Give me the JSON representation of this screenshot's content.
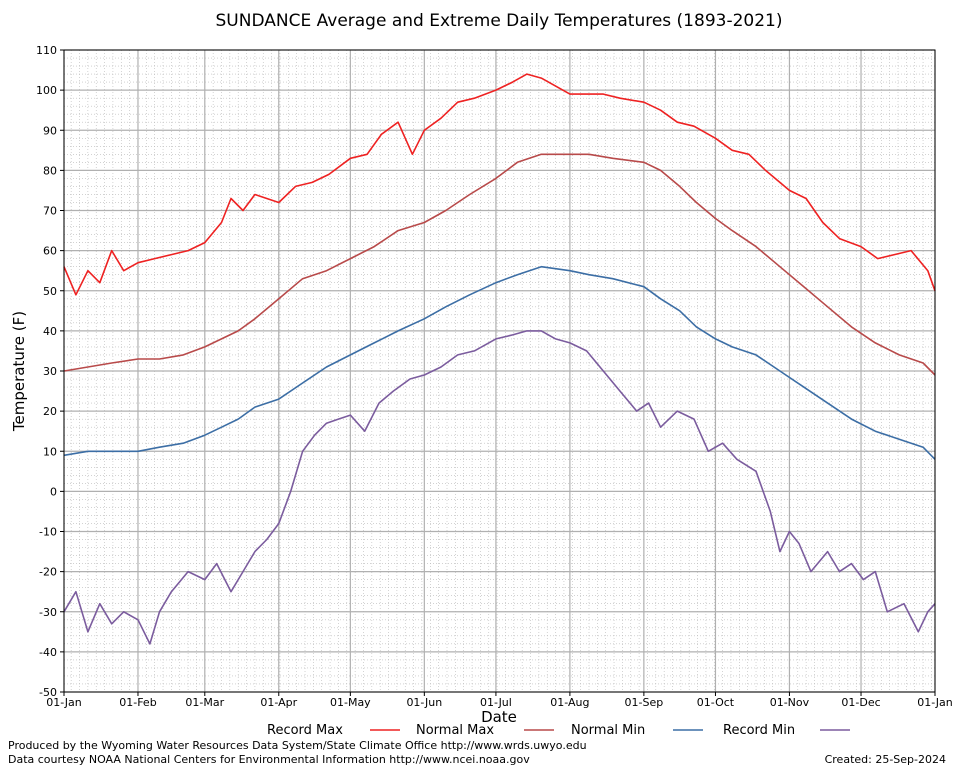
{
  "chart_data": {
    "type": "line",
    "title": "SUNDANCE Average and Extreme Daily Temperatures (1893-2021)",
    "xlabel": "Date",
    "ylabel": "Temperature (F)",
    "x_ticks": [
      "01-Jan",
      "01-Feb",
      "01-Mar",
      "01-Apr",
      "01-May",
      "01-Jun",
      "01-Jul",
      "01-Aug",
      "01-Sep",
      "01-Oct",
      "01-Nov",
      "01-Dec",
      "01-Jan"
    ],
    "x_tick_days": [
      0,
      31,
      59,
      90,
      120,
      151,
      181,
      212,
      243,
      273,
      304,
      334,
      365
    ],
    "x_range": [
      0,
      365
    ],
    "y_ticks": [
      -50,
      -40,
      -30,
      -20,
      -10,
      0,
      10,
      20,
      30,
      40,
      50,
      60,
      70,
      80,
      90,
      100,
      110
    ],
    "ylim": [
      -50,
      110
    ],
    "grid": true,
    "legend_position": "bottom",
    "series": [
      {
        "name": "Record Max",
        "color": "#ee2222",
        "x": [
          0,
          5,
          10,
          15,
          20,
          25,
          31,
          38,
          45,
          52,
          59,
          66,
          70,
          75,
          80,
          85,
          90,
          97,
          104,
          111,
          120,
          127,
          133,
          140,
          146,
          151,
          158,
          165,
          172,
          181,
          188,
          194,
          200,
          206,
          212,
          219,
          226,
          233,
          243,
          250,
          257,
          264,
          273,
          280,
          287,
          294,
          304,
          311,
          318,
          325,
          334,
          341,
          348,
          355,
          362,
          365
        ],
        "values": [
          56,
          49,
          55,
          52,
          60,
          55,
          57,
          58,
          59,
          60,
          62,
          67,
          73,
          70,
          74,
          73,
          72,
          76,
          77,
          79,
          83,
          84,
          89,
          92,
          84,
          90,
          93,
          97,
          98,
          100,
          102,
          104,
          103,
          101,
          99,
          99,
          99,
          98,
          97,
          95,
          92,
          91,
          88,
          85,
          84,
          80,
          75,
          73,
          67,
          63,
          61,
          58,
          59,
          60,
          55,
          50
        ]
      },
      {
        "name": "Normal Max",
        "color": "#b84a4a",
        "x": [
          0,
          10,
          20,
          31,
          40,
          50,
          59,
          66,
          73,
          80,
          90,
          100,
          110,
          120,
          130,
          140,
          151,
          160,
          170,
          181,
          190,
          200,
          212,
          220,
          230,
          243,
          250,
          258,
          265,
          273,
          280,
          290,
          300,
          310,
          320,
          330,
          340,
          350,
          360,
          365
        ],
        "values": [
          30,
          31,
          32,
          33,
          33,
          34,
          36,
          38,
          40,
          43,
          48,
          53,
          55,
          58,
          61,
          65,
          67,
          70,
          74,
          78,
          82,
          84,
          84,
          84,
          83,
          82,
          80,
          76,
          72,
          68,
          65,
          61,
          56,
          51,
          46,
          41,
          37,
          34,
          32,
          29
        ]
      },
      {
        "name": "Normal Min",
        "color": "#3c6ea5",
        "x": [
          0,
          10,
          20,
          31,
          40,
          50,
          59,
          66,
          73,
          80,
          90,
          100,
          110,
          120,
          130,
          140,
          151,
          160,
          170,
          181,
          190,
          200,
          212,
          220,
          230,
          243,
          250,
          258,
          265,
          273,
          280,
          290,
          300,
          310,
          320,
          330,
          340,
          350,
          360,
          365
        ],
        "values": [
          9,
          10,
          10,
          10,
          11,
          12,
          14,
          16,
          18,
          21,
          23,
          27,
          31,
          34,
          37,
          40,
          43,
          46,
          49,
          52,
          54,
          56,
          55,
          54,
          53,
          51,
          48,
          45,
          41,
          38,
          36,
          34,
          30,
          26,
          22,
          18,
          15,
          13,
          11,
          8
        ]
      },
      {
        "name": "Record Min",
        "color": "#7b5c9e",
        "x": [
          0,
          5,
          10,
          15,
          20,
          25,
          31,
          36,
          40,
          45,
          52,
          59,
          64,
          70,
          75,
          80,
          85,
          90,
          95,
          100,
          105,
          110,
          115,
          120,
          126,
          132,
          138,
          145,
          151,
          158,
          165,
          172,
          181,
          188,
          194,
          200,
          206,
          212,
          219,
          226,
          233,
          240,
          245,
          250,
          257,
          264,
          270,
          276,
          282,
          290,
          296,
          300,
          304,
          308,
          313,
          320,
          325,
          330,
          335,
          340,
          345,
          352,
          358,
          362,
          365
        ],
        "values": [
          -30,
          -25,
          -35,
          -28,
          -33,
          -30,
          -32,
          -38,
          -30,
          -25,
          -20,
          -22,
          -18,
          -25,
          -20,
          -15,
          -12,
          -8,
          0,
          10,
          14,
          17,
          18,
          19,
          15,
          22,
          25,
          28,
          29,
          31,
          34,
          35,
          38,
          39,
          40,
          40,
          38,
          37,
          35,
          30,
          25,
          20,
          22,
          16,
          20,
          18,
          10,
          12,
          8,
          5,
          -5,
          -15,
          -10,
          -13,
          -20,
          -15,
          -20,
          -18,
          -22,
          -20,
          -30,
          -28,
          -35,
          -30,
          -28
        ]
      }
    ]
  },
  "footer": {
    "line1": "Produced by the Wyoming Water Resources Data System/State Climate Office http://www.wrds.uwyo.edu",
    "line2": "Data courtesy NOAA National Centers for Environmental Information http://www.ncei.noaa.gov",
    "created": "Created:  25-Sep-2024"
  }
}
